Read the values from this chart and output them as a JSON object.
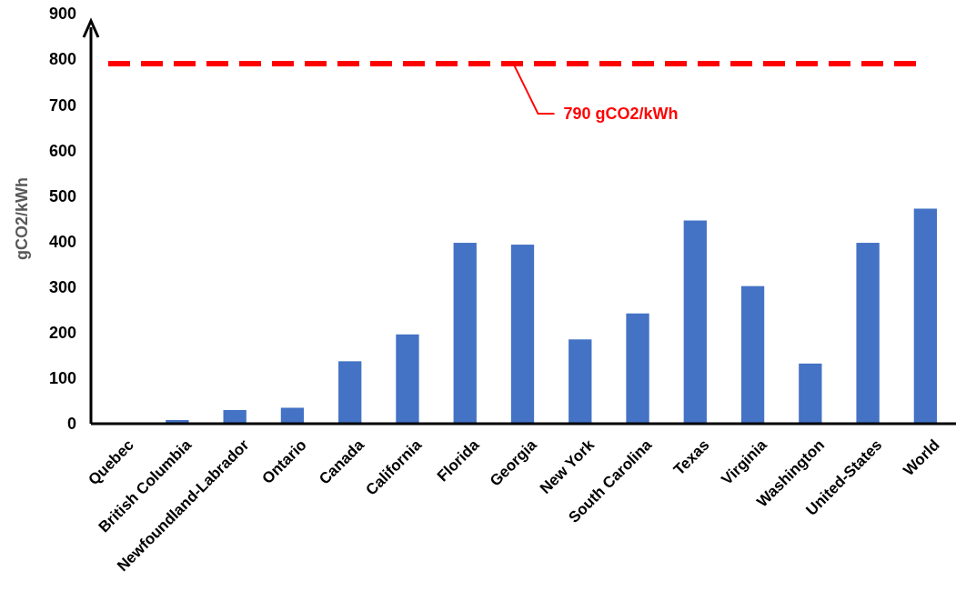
{
  "chart_data": {
    "type": "bar",
    "ylabel": "gCO2/kWh",
    "categories": [
      "Quebec",
      "British Columbia",
      "Newfoundland-Labrador",
      "Ontario",
      "Canada",
      "California",
      "Florida",
      "Georgia",
      "New York",
      "South Carolina",
      "Texas",
      "Virginia",
      "Washington",
      "United-States",
      "World"
    ],
    "values": [
      2,
      8,
      30,
      35,
      137,
      196,
      397,
      393,
      185,
      242,
      446,
      302,
      132,
      397,
      472
    ],
    "color": "#4472c4",
    "ylim": [
      0,
      900
    ],
    "yticks": [
      0,
      100,
      200,
      300,
      400,
      500,
      600,
      700,
      800,
      900
    ],
    "ref_lines": [
      {
        "axis": "y",
        "value": 790,
        "label": "790 gCO2/kWh",
        "color": "#ff0000",
        "line_style": "dashed"
      }
    ],
    "grid": false
  }
}
